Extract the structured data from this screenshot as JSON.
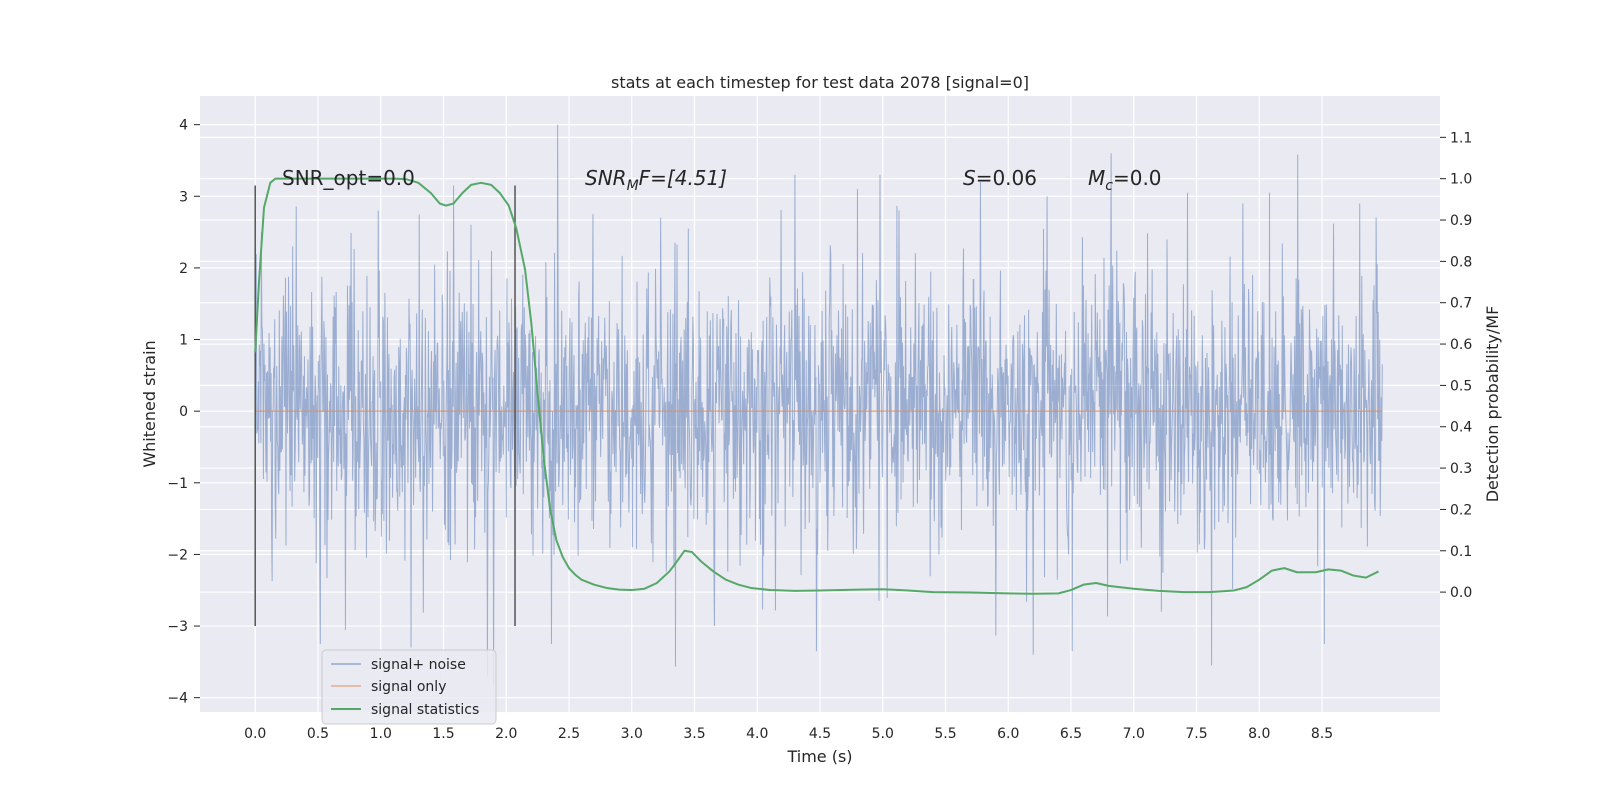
{
  "colors": {
    "plot_bg": "#eaeaf2",
    "grid": "#ffffff",
    "noise": "#4c72b0",
    "signal_only": "#dd8452",
    "statistics": "#55a868",
    "marker_line": "#555555"
  },
  "chart_data": {
    "type": "line",
    "title": "stats at each timestep for test data 2078 [signal=0]",
    "xlabel": "Time (s)",
    "ylabel": "Whitened strain",
    "y2label": "Detection probability/MF",
    "xlim": [
      -0.44,
      9.44
    ],
    "ylim": [
      -4.2,
      4.4
    ],
    "y2lim": [
      -0.29,
      1.2
    ],
    "xticks": [
      "0.0",
      "0.5",
      "1.0",
      "1.5",
      "2.0",
      "2.5",
      "3.0",
      "3.5",
      "4.0",
      "4.5",
      "5.0",
      "5.5",
      "6.0",
      "6.5",
      "7.0",
      "7.5",
      "8.0",
      "8.5"
    ],
    "yticks": [
      "−4",
      "−3",
      "−2",
      "−1",
      "0",
      "1",
      "2",
      "3",
      "4"
    ],
    "y2ticks": [
      "0.0",
      "0.1",
      "0.2",
      "0.3",
      "0.4",
      "0.5",
      "0.6",
      "0.7",
      "0.8",
      "0.9",
      "1.0",
      "1.1"
    ],
    "grid": true,
    "legend_position": "lower-left",
    "legend": [
      "signal+ noise",
      "signal only",
      "signal statistics"
    ],
    "annotations": {
      "snr_opt": "SNR_opt=0.0",
      "snr_mf_prefix": "SNR",
      "snr_mf_sub": "M",
      "snr_mf_suffix": "F=[4.51]",
      "s_label": "S",
      "s_value": "=0.06",
      "mc_label": "M",
      "mc_sub": "c",
      "mc_value": "=0.0"
    },
    "vertical_markers": [
      0.0,
      2.07
    ],
    "marker_y_range": [
      -3.0,
      3.15
    ],
    "series": [
      {
        "name": "signal+ noise",
        "t_range": [
          0.0,
          8.98
        ],
        "approx_std": 1.0,
        "approx_range": [
          -3.9,
          4.0
        ],
        "note_values": "dense noise time series, peaks drawn at representative values",
        "peaks": [
          [
            0.05,
            2.5
          ],
          [
            0.3,
            2.3
          ],
          [
            0.52,
            -3.25
          ],
          [
            0.98,
            2.8
          ],
          [
            1.24,
            -3.3
          ],
          [
            1.58,
            3.15
          ],
          [
            1.72,
            2.6
          ],
          [
            1.85,
            -3.7
          ],
          [
            1.9,
            -3.85
          ],
          [
            2.41,
            4.0
          ],
          [
            2.36,
            -3.25
          ],
          [
            3.23,
            2.7
          ],
          [
            3.45,
            2.55
          ],
          [
            3.66,
            -3.0
          ],
          [
            4.3,
            3.3
          ],
          [
            4.47,
            -3.35
          ],
          [
            4.8,
            3.1
          ],
          [
            4.98,
            3.3
          ],
          [
            5.78,
            3.2
          ],
          [
            6.2,
            -3.4
          ],
          [
            6.31,
            3.0
          ],
          [
            6.51,
            -3.35
          ],
          [
            6.82,
            3.6
          ],
          [
            7.22,
            -2.8
          ],
          [
            7.43,
            3.05
          ],
          [
            7.62,
            -3.55
          ],
          [
            7.87,
            2.9
          ],
          [
            8.08,
            3.05
          ],
          [
            8.52,
            -3.25
          ],
          [
            8.8,
            2.9
          ]
        ]
      },
      {
        "name": "signal only",
        "values": "constant 0.0 over t_range"
      },
      {
        "name": "signal statistics",
        "axis": "right",
        "t": [
          0.0,
          0.03,
          0.07,
          0.12,
          0.16,
          0.2,
          0.3,
          0.5,
          0.8,
          1.0,
          1.1,
          1.2,
          1.3,
          1.4,
          1.47,
          1.52,
          1.58,
          1.65,
          1.72,
          1.8,
          1.88,
          1.95,
          2.02,
          2.08,
          2.15,
          2.2,
          2.25,
          2.3,
          2.35,
          2.4,
          2.45,
          2.5,
          2.55,
          2.6,
          2.7,
          2.8,
          2.9,
          3.0,
          3.1,
          3.2,
          3.3,
          3.35,
          3.42,
          3.48,
          3.55,
          3.65,
          3.75,
          3.85,
          3.95,
          4.1,
          4.3,
          4.5,
          4.8,
          5.0,
          5.2,
          5.4,
          5.7,
          6.0,
          6.2,
          6.4,
          6.5,
          6.6,
          6.7,
          6.8,
          7.0,
          7.2,
          7.4,
          7.6,
          7.8,
          7.9,
          8.0,
          8.1,
          8.2,
          8.3,
          8.45,
          8.55,
          8.65,
          8.75,
          8.85,
          8.95
        ],
        "values": [
          0.58,
          0.75,
          0.93,
          0.99,
          1.0,
          1.0,
          1.0,
          1.0,
          1.0,
          1.0,
          1.0,
          0.999,
          0.99,
          0.965,
          0.94,
          0.935,
          0.94,
          0.965,
          0.985,
          0.99,
          0.985,
          0.965,
          0.935,
          0.88,
          0.78,
          0.65,
          0.48,
          0.32,
          0.2,
          0.125,
          0.085,
          0.058,
          0.042,
          0.03,
          0.018,
          0.01,
          0.006,
          0.005,
          0.008,
          0.022,
          0.05,
          0.07,
          0.1,
          0.097,
          0.075,
          0.05,
          0.03,
          0.018,
          0.01,
          0.005,
          0.003,
          0.004,
          0.006,
          0.007,
          0.004,
          0.0,
          -0.001,
          -0.003,
          -0.004,
          -0.003,
          0.005,
          0.018,
          0.022,
          0.015,
          0.008,
          0.003,
          0.0,
          0.0,
          0.004,
          0.012,
          0.03,
          0.052,
          0.058,
          0.048,
          0.048,
          0.055,
          0.052,
          0.04,
          0.035,
          0.05
        ]
      }
    ]
  }
}
